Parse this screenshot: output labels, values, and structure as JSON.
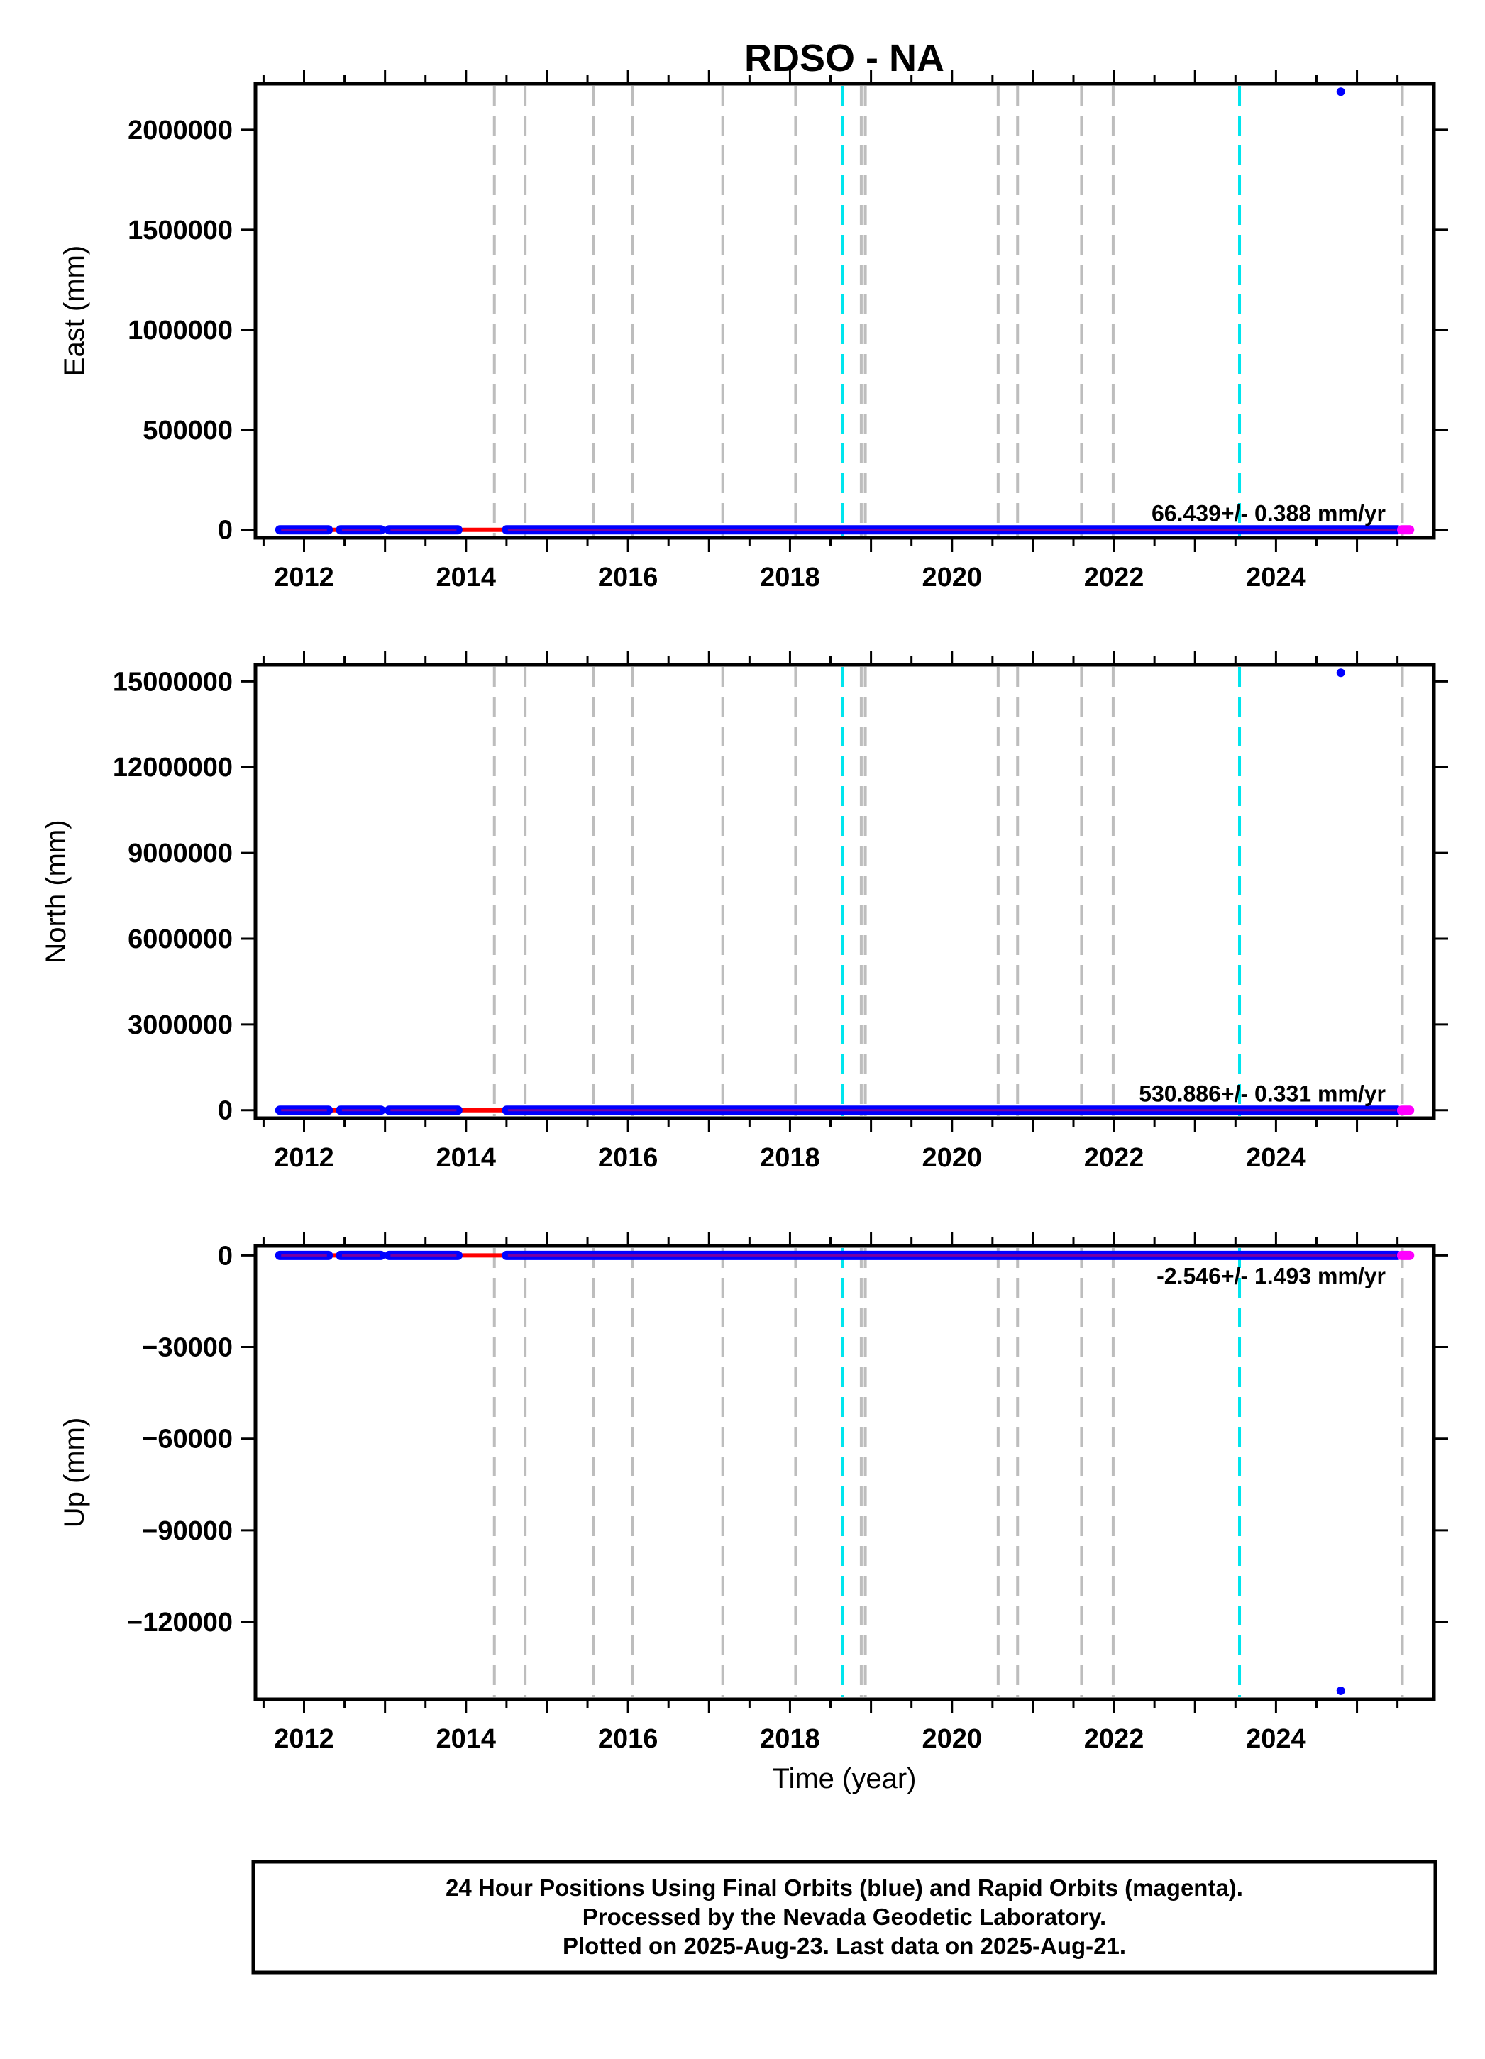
{
  "title": "RDSO - NA",
  "colors": {
    "final_orbits": "#0000ff",
    "rapid_orbits": "#ff00ff",
    "trend": "#ff0000",
    "equipment_change": "#bdbdbd",
    "earthquake": "#00e5ee",
    "frame": "#000000"
  },
  "chart_data": [
    {
      "type": "scatter",
      "panel": "east",
      "ylabel": "East (mm)",
      "xlim": [
        2011.4,
        2025.95
      ],
      "ylim": [
        -40000,
        2230000
      ],
      "yticks": [
        0,
        500000,
        1000000,
        1500000,
        2000000
      ],
      "xticks": [
        2012,
        2014,
        2016,
        2018,
        2020,
        2022,
        2024
      ],
      "grid": false,
      "rate_label": "66.439+/- 0.388 mm/yr",
      "final_orbits": {
        "segments": [
          [
            2011.7,
            2012.3
          ],
          [
            2012.45,
            2012.95
          ],
          [
            2013.05,
            2013.9
          ],
          [
            2014.5,
            2025.5
          ]
        ],
        "value": 0,
        "outliers": [
          {
            "x": 2024.8,
            "y": 2190000
          }
        ]
      },
      "rapid_orbits": {
        "segments": [
          [
            2025.55,
            2025.65
          ]
        ],
        "value": 0
      },
      "trend": {
        "x": [
          2011.7,
          2025.65
        ],
        "y": [
          0,
          0
        ]
      }
    },
    {
      "type": "scatter",
      "panel": "north",
      "ylabel": "North (mm)",
      "xlim": [
        2011.4,
        2025.95
      ],
      "ylim": [
        -280000,
        15580000
      ],
      "yticks": [
        0,
        3000000,
        6000000,
        9000000,
        12000000,
        15000000
      ],
      "xticks": [
        2012,
        2014,
        2016,
        2018,
        2020,
        2022,
        2024
      ],
      "grid": false,
      "rate_label": "530.886+/- 0.331 mm/yr",
      "final_orbits": {
        "segments": [
          [
            2011.7,
            2012.3
          ],
          [
            2012.45,
            2012.95
          ],
          [
            2013.05,
            2013.9
          ],
          [
            2014.5,
            2025.5
          ]
        ],
        "value": 0,
        "outliers": [
          {
            "x": 2024.8,
            "y": 15300000
          }
        ]
      },
      "rapid_orbits": {
        "segments": [
          [
            2025.55,
            2025.65
          ]
        ],
        "value": 0
      },
      "trend": {
        "x": [
          2011.7,
          2025.65
        ],
        "y": [
          0,
          0
        ]
      }
    },
    {
      "type": "scatter",
      "panel": "up",
      "ylabel": "Up (mm)",
      "xlabel": "Time (year)",
      "xlim": [
        2011.4,
        2025.95
      ],
      "ylim": [
        -145300,
        3100
      ],
      "yticks": [
        -120000,
        -90000,
        -60000,
        -30000,
        0
      ],
      "ytick_labels": [
        "−120000",
        "−90000",
        "−60000",
        "−30000",
        "0"
      ],
      "xticks": [
        2012,
        2014,
        2016,
        2018,
        2020,
        2022,
        2024
      ],
      "grid": false,
      "rate_label": "-2.546+/- 1.493 mm/yr",
      "final_orbits": {
        "segments": [
          [
            2011.7,
            2012.3
          ],
          [
            2012.45,
            2012.95
          ],
          [
            2013.05,
            2013.9
          ],
          [
            2014.5,
            2025.5
          ]
        ],
        "value": 0,
        "outliers": [
          {
            "x": 2024.8,
            "y": -142500
          }
        ]
      },
      "rapid_orbits": {
        "segments": [
          [
            2025.55,
            2025.65
          ]
        ],
        "value": 0
      },
      "trend": {
        "x": [
          2011.7,
          2025.65
        ],
        "y": [
          0,
          0
        ]
      }
    }
  ],
  "equipment_changes": [
    2014.35,
    2014.73,
    2015.57,
    2016.06,
    2017.17,
    2018.07,
    2018.88,
    2018.93,
    2020.57,
    2020.81,
    2021.6,
    2021.99,
    2025.56
  ],
  "earthquakes": [
    2018.65,
    2023.55
  ],
  "caption": {
    "line1": "24 Hour Positions Using Final Orbits (blue) and Rapid Orbits (magenta).",
    "line2": "Processed by the Nevada Geodetic Laboratory.",
    "line3": "Plotted on 2025-Aug-23. Last data on 2025-Aug-21."
  }
}
